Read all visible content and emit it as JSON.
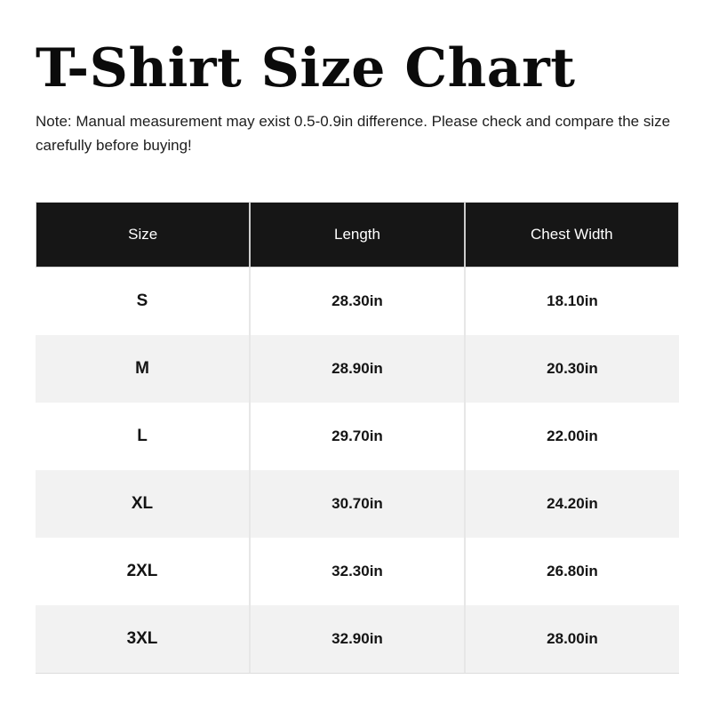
{
  "page": {
    "title": "T-Shirt Size Chart",
    "note": "Note: Manual measurement may exist 0.5-0.9in difference. Please check and compare the size carefully before buying!"
  },
  "colors": {
    "header_bg": "#161616",
    "header_text": "#ffffff",
    "row_bg": "#ffffff",
    "row_alt_bg": "#f2f2f2",
    "divider": "#e7e7e7",
    "body_text": "#141414"
  },
  "table": {
    "headers": [
      "Size",
      "Length",
      "Chest Width"
    ],
    "rows": [
      {
        "size": "S",
        "length": "28.30in",
        "chest_width": "18.10in"
      },
      {
        "size": "M",
        "length": "28.90in",
        "chest_width": "20.30in"
      },
      {
        "size": "L",
        "length": "29.70in",
        "chest_width": "22.00in"
      },
      {
        "size": "XL",
        "length": "30.70in",
        "chest_width": "24.20in"
      },
      {
        "size": "2XL",
        "length": "32.30in",
        "chest_width": "26.80in"
      },
      {
        "size": "3XL",
        "length": "32.90in",
        "chest_width": "28.00in"
      }
    ]
  },
  "chart_data": {
    "type": "table",
    "title": "T-Shirt Size Chart",
    "columns": [
      "Size",
      "Length",
      "Chest Width"
    ],
    "units": "in",
    "categories": [
      "S",
      "M",
      "L",
      "XL",
      "2XL",
      "3XL"
    ],
    "series": [
      {
        "name": "Length",
        "values": [
          28.3,
          28.9,
          29.7,
          30.7,
          32.3,
          32.9
        ]
      },
      {
        "name": "Chest Width",
        "values": [
          18.1,
          20.3,
          22.0,
          24.2,
          26.8,
          28.0
        ]
      }
    ],
    "rows": [
      [
        "S",
        "28.30in",
        "18.10in"
      ],
      [
        "M",
        "28.90in",
        "20.30in"
      ],
      [
        "L",
        "29.70in",
        "22.00in"
      ],
      [
        "XL",
        "30.70in",
        "24.20in"
      ],
      [
        "2XL",
        "32.30in",
        "26.80in"
      ],
      [
        "3XL",
        "32.90in",
        "28.00in"
      ]
    ]
  }
}
